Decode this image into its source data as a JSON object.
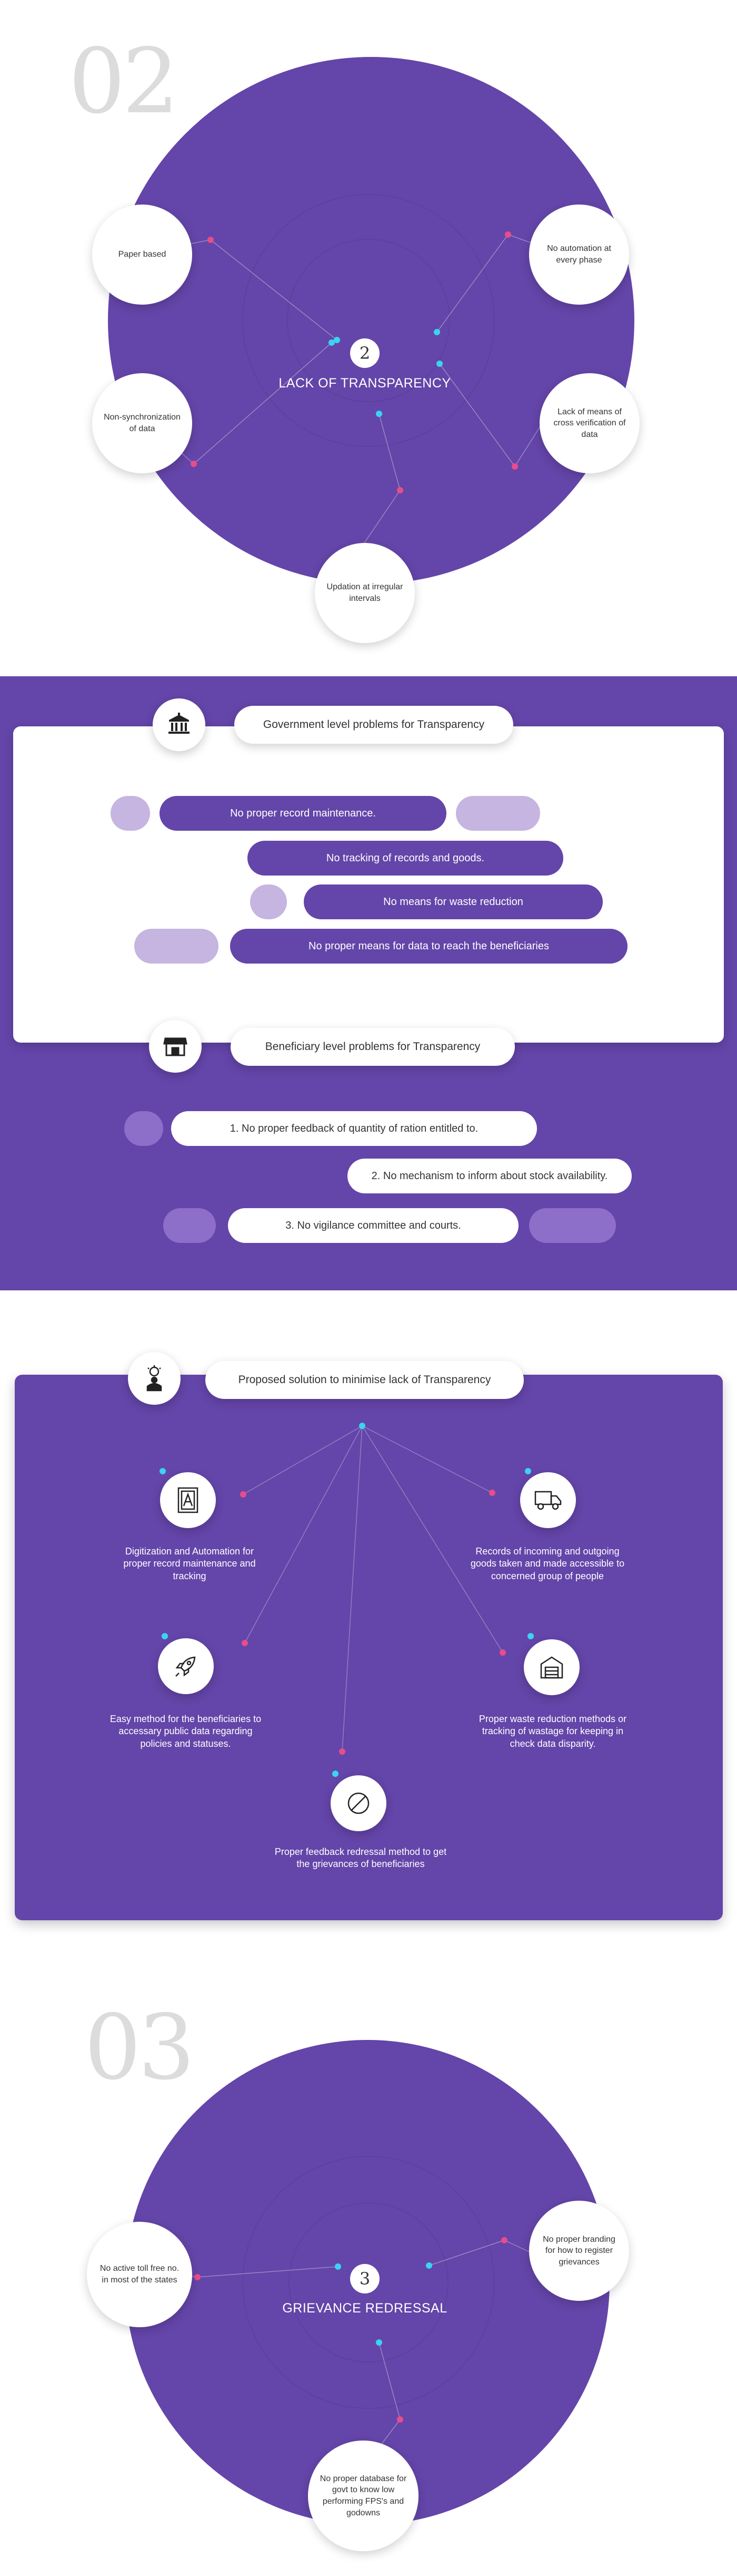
{
  "section2": {
    "number": "02",
    "badge": "2",
    "title": "LACK OF TRANSPARENCY",
    "nodes": [
      "Paper based",
      "No automation at every phase",
      "Non-synchronization of data",
      "Lack of means of cross verification of data",
      "Updation at irregular intervals"
    ]
  },
  "gov": {
    "header": "Government level problems for Transparency",
    "icon": "government-building-icon",
    "pills": [
      "No proper record maintenance.",
      "No tracking of records and goods.",
      "No means for waste reduction",
      "No proper means for data to reach the beneficiaries"
    ]
  },
  "ben": {
    "header": "Beneficiary level problems for Transparency",
    "icon": "shop-icon",
    "pills": [
      "1. No proper feedback of quantity of ration entitled to.",
      "2. No mechanism to inform about stock availability.",
      "3. No vigilance committee and courts."
    ]
  },
  "solution": {
    "header": "Proposed solution to minimise lack of Transparency",
    "icon": "idea-person-icon",
    "items": [
      {
        "icon": "document-icon",
        "text": "Digitization and Automation for proper record maintenance and tracking"
      },
      {
        "icon": "truck-icon",
        "text": "Records of incoming and outgoing goods taken and made accessible to concerned group of people"
      },
      {
        "icon": "rocket-icon",
        "text": "Easy method for the beneficiaries to accessary public data regarding policies and statuses."
      },
      {
        "icon": "warehouse-icon",
        "text": "Proper waste reduction methods or tracking of wastage for keeping in check data disparity."
      },
      {
        "icon": "forbidden-icon",
        "text": "Proper feedback redressal method to get the grievances of beneficiaries"
      }
    ]
  },
  "section3": {
    "number": "03",
    "badge": "3",
    "title": "GRIEVANCE REDRESSAL",
    "nodes": [
      "No active toll free no. in most of the states",
      "No proper branding for how to register grievances",
      "No proper database for govt to know low performing FPS's and godowns"
    ]
  },
  "colors": {
    "purple": "#6445a9",
    "pink": "#e84d8a",
    "cyan": "#3ad4f0",
    "light_purple": "#c5b5e0"
  }
}
